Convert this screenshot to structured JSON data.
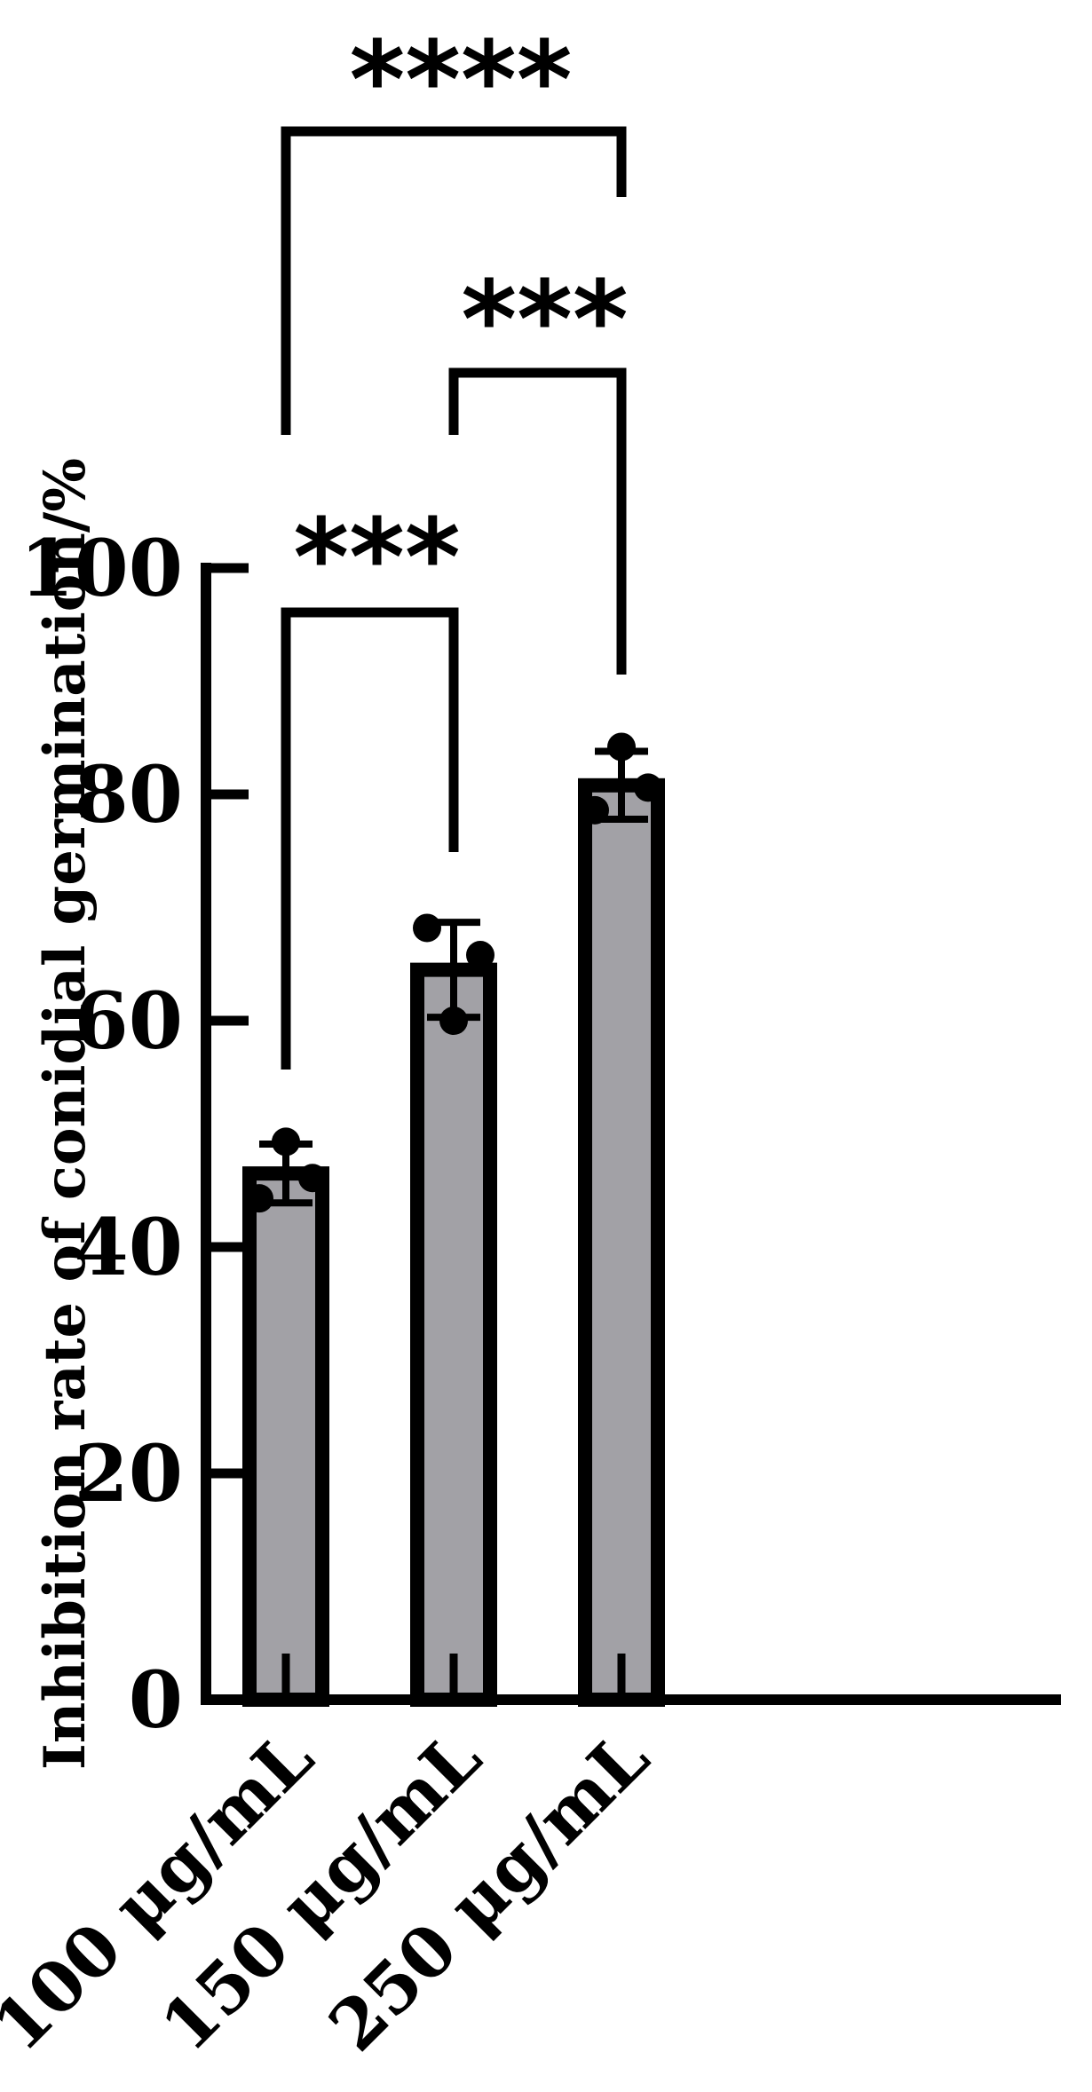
{
  "chart_data": {
    "type": "bar",
    "ylabel": "Inhibition rate of conidial germination/%",
    "xlabel": "",
    "ylim": [
      0,
      100
    ],
    "yticks": [
      0,
      20,
      40,
      60,
      80,
      100
    ],
    "categories": [
      "100 μg/mL",
      "150 μg/mL",
      "250 μg/mL"
    ],
    "values": [
      46.5,
      64.5,
      80.8
    ],
    "errors": [
      2.6,
      4.2,
      3.0
    ],
    "points": [
      [
        44.3,
        49.3,
        46.1
      ],
      [
        68.2,
        60.0,
        65.8
      ],
      [
        78.6,
        84.2,
        80.6
      ]
    ],
    "bar_color": "#a2a1a6",
    "edge_color": "#000000",
    "significance": [
      {
        "from": 0,
        "to": 2,
        "label": "****"
      },
      {
        "from": 1,
        "to": 2,
        "label": "***"
      },
      {
        "from": 0,
        "to": 1,
        "label": "***"
      }
    ]
  }
}
